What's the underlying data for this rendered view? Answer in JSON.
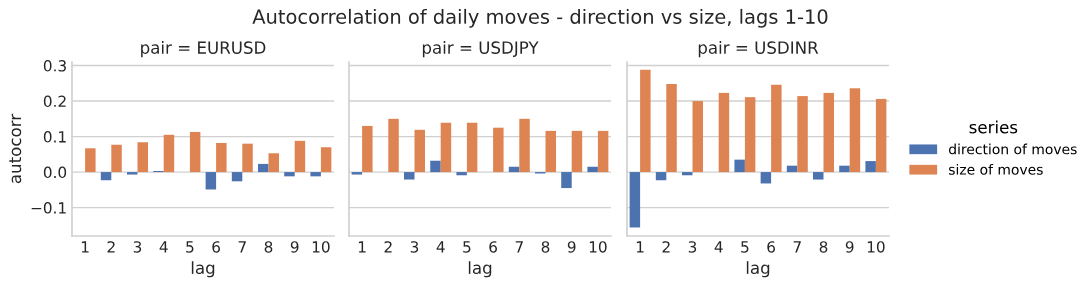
{
  "chart_data": [
    {
      "type": "bar",
      "title": "pair = EURUSD",
      "xlabel": "lag",
      "ylabel": "autocorr",
      "annotations": [
        "Autocorrelation of daily moves - direction vs size, lags 1-10"
      ],
      "categories": [
        "1",
        "2",
        "3",
        "4",
        "5",
        "6",
        "7",
        "8",
        "9",
        "10"
      ],
      "ylim": [
        -0.18,
        0.31
      ],
      "yticks": [
        -0.1,
        {
          "value": 0,
          "label": "0.0"
        },
        0.1,
        0.2,
        0.3
      ],
      "grid": "y",
      "series": [
        {
          "color": "#4c72b0",
          "values": [
            0.0,
            -0.023,
            -0.007,
            0.003,
            0.0,
            -0.049,
            -0.026,
            0.023,
            -0.012,
            -0.012
          ]
        },
        {
          "color": "#dd8452",
          "values": [
            0.067,
            0.077,
            0.084,
            0.105,
            0.113,
            0.082,
            0.08,
            0.053,
            0.088,
            0.07
          ]
        }
      ]
    },
    {
      "type": "bar",
      "title": "pair = USDJPY",
      "xlabel": "lag",
      "categories": [
        "1",
        "2",
        "3",
        "4",
        "5",
        "6",
        "7",
        "8",
        "9",
        "10"
      ],
      "ylim": [
        -0.18,
        0.31
      ],
      "yticks": [
        -0.1,
        0,
        0.1,
        0.2,
        0.3
      ],
      "tick_labels": "x",
      "grid": "y",
      "series": [
        {
          "color": "#4c72b0",
          "values": [
            -0.007,
            0.0,
            -0.021,
            0.032,
            -0.009,
            0.0,
            0.015,
            -0.004,
            -0.045,
            0.015
          ]
        },
        {
          "color": "#dd8452",
          "values": [
            0.13,
            0.15,
            0.119,
            0.139,
            0.139,
            0.125,
            0.15,
            0.116,
            0.116,
            0.116
          ]
        }
      ]
    },
    {
      "type": "bar",
      "title": "pair = USDINR",
      "xlabel": "lag",
      "categories": [
        "1",
        "2",
        "3",
        "4",
        "5",
        "6",
        "7",
        "8",
        "9",
        "10"
      ],
      "ylim": [
        -0.18,
        0.31
      ],
      "yticks": [
        -0.1,
        0,
        0.1,
        0.2,
        0.3
      ],
      "tick_labels": "x",
      "grid": "y",
      "legend": "right",
      "legend_title": "series",
      "series": [
        {
          "name": "direction of moves",
          "color": "#4c72b0",
          "values": [
            -0.156,
            -0.023,
            -0.009,
            0.0,
            0.035,
            -0.032,
            0.018,
            -0.021,
            0.018,
            0.031
          ]
        },
        {
          "name": "size of moves",
          "color": "#dd8452",
          "values": [
            0.288,
            0.248,
            0.2,
            0.223,
            0.211,
            0.246,
            0.214,
            0.223,
            0.236,
            0.206
          ]
        }
      ]
    }
  ]
}
